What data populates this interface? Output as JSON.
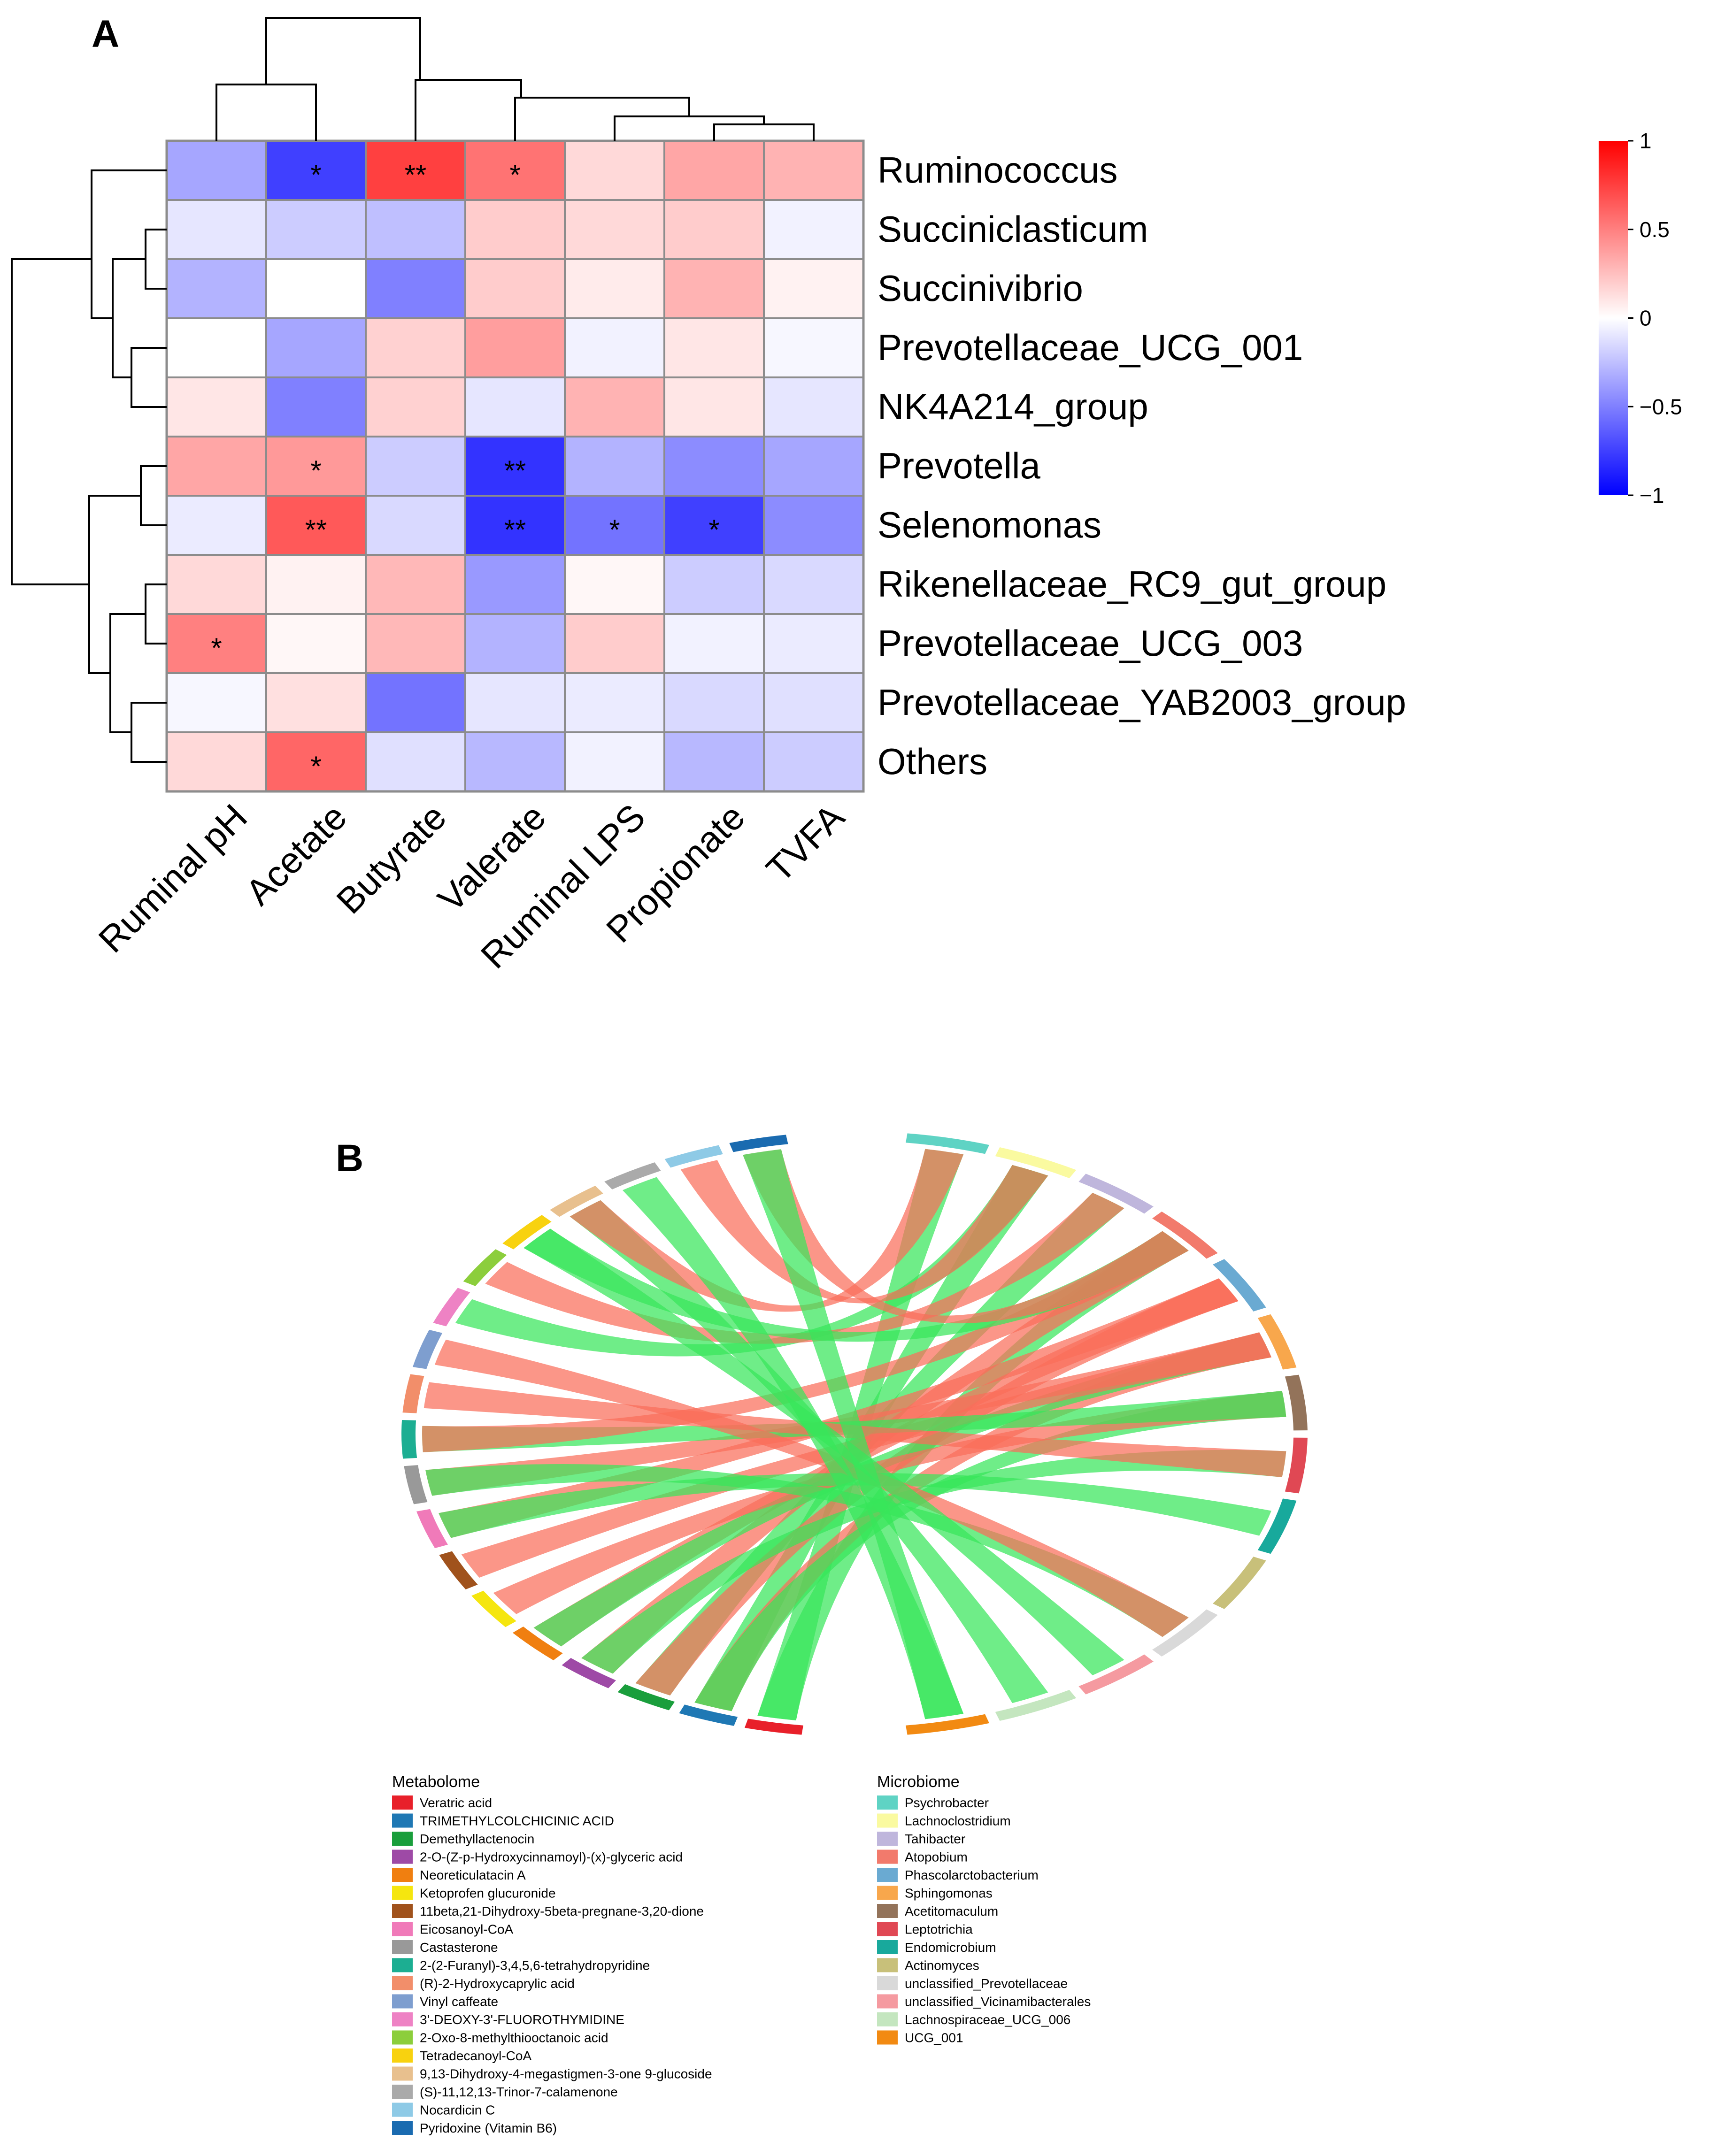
{
  "colors": {
    "neg": "#0000ff",
    "zero": "#ffffff",
    "pos": "#ff0000",
    "grid": "#8c8c8c",
    "dendro": "#000000",
    "chord_pos": "#fa6e5a",
    "chord_neg": "#37e65a"
  },
  "chart_data": [
    {
      "type": "heatmap",
      "panel": "A",
      "columns": [
        "Ruminal pH",
        "Acetate",
        "Butyrate",
        "Valerate",
        "Ruminal LPS",
        "Propionate",
        "TVFA"
      ],
      "rows": [
        "Ruminococcus",
        "Succiniclasticum",
        "Succinivibrio",
        "Prevotellaceae_UCG_001",
        "NK4A214_group",
        "Prevotella",
        "Selenomonas",
        "Rikenellaceae_RC9_gut_group",
        "Prevotellaceae_UCG_003",
        "Prevotellaceae_YAB2003_group",
        "Others"
      ],
      "values": [
        [
          -0.35,
          -0.75,
          0.75,
          0.55,
          0.15,
          0.35,
          0.3
        ],
        [
          -0.1,
          -0.2,
          -0.25,
          0.2,
          0.15,
          0.2,
          -0.05
        ],
        [
          -0.3,
          0.0,
          -0.5,
          0.2,
          0.08,
          0.3,
          0.05
        ],
        [
          0.0,
          -0.35,
          0.18,
          0.38,
          -0.05,
          0.1,
          -0.03
        ],
        [
          0.1,
          -0.5,
          0.18,
          -0.1,
          0.3,
          0.1,
          -0.1
        ],
        [
          0.35,
          0.4,
          -0.2,
          -0.8,
          -0.3,
          -0.45,
          -0.35
        ],
        [
          -0.08,
          0.65,
          -0.15,
          -0.8,
          -0.55,
          -0.75,
          -0.45
        ],
        [
          0.15,
          0.05,
          0.28,
          -0.4,
          0.03,
          -0.2,
          -0.15
        ],
        [
          0.5,
          0.03,
          0.28,
          -0.3,
          0.2,
          -0.05,
          -0.08
        ],
        [
          -0.03,
          0.12,
          -0.55,
          -0.1,
          -0.08,
          -0.15,
          -0.12
        ],
        [
          0.15,
          0.6,
          -0.12,
          -0.28,
          -0.05,
          -0.28,
          -0.2
        ]
      ],
      "significance": [
        [
          "",
          "*",
          "**",
          "*",
          "",
          "",
          ""
        ],
        [
          "",
          "",
          "",
          "",
          "",
          "",
          ""
        ],
        [
          "",
          "",
          "",
          "",
          "",
          "",
          ""
        ],
        [
          "",
          "",
          "",
          "",
          "",
          "",
          ""
        ],
        [
          "",
          "",
          "",
          "",
          "",
          "",
          ""
        ],
        [
          "",
          "*",
          "",
          "**",
          "",
          "",
          ""
        ],
        [
          "",
          "**",
          "",
          "**",
          "*",
          "*",
          ""
        ],
        [
          "",
          "",
          "",
          "",
          "",
          "",
          ""
        ],
        [
          "*",
          "",
          "",
          "",
          "",
          "",
          ""
        ],
        [
          "",
          "",
          "",
          "",
          "",
          "",
          ""
        ],
        [
          "",
          "*",
          "",
          "",
          "",
          "",
          ""
        ]
      ],
      "scale": {
        "min": -1,
        "max": 1,
        "ticks": [
          1,
          0.5,
          0,
          -0.5,
          -1
        ],
        "tick_labels": [
          "1",
          "0.5",
          "0",
          "−0.5",
          "−1"
        ]
      }
    },
    {
      "type": "chord",
      "panel": "B",
      "metabolome_title": "Metabolome",
      "microbiome_title": "Microbiome",
      "metabolome": [
        {
          "name": "Veratric acid",
          "color": "#e8202a"
        },
        {
          "name": "TRIMETHYLCOLCHICINIC ACID",
          "color": "#1f78b4"
        },
        {
          "name": "Demethyllactenocin",
          "color": "#1a9e3c"
        },
        {
          "name": "2-O-(Z-p-Hydroxycinnamoyl)-(x)-glyceric acid",
          "color": "#9e4aa6"
        },
        {
          "name": "Neoreticulatacin A",
          "color": "#f07f10"
        },
        {
          "name": "Ketoprofen glucuronide",
          "color": "#f5e60f"
        },
        {
          "name": "11beta,21-Dihydroxy-5beta-pregnane-3,20-dione",
          "color": "#a0521c"
        },
        {
          "name": "Eicosanoyl-CoA",
          "color": "#f07ab9"
        },
        {
          "name": "Castasterone",
          "color": "#999999"
        },
        {
          "name": "2-(2-Furanyl)-3,4,5,6-tetrahydropyridine",
          "color": "#1cae92"
        },
        {
          "name": "(R)-2-Hydroxycaprylic acid",
          "color": "#f28e6a"
        },
        {
          "name": "Vinyl caffeate",
          "color": "#7e9ecf"
        },
        {
          "name": "3'-DEOXY-3'-FLUOROTHYMIDINE",
          "color": "#ee82c4"
        },
        {
          "name": "2-Oxo-8-methylthiooctanoic acid",
          "color": "#8cce3c"
        },
        {
          "name": "Tetradecanoyl-CoA",
          "color": "#f8d20f"
        },
        {
          "name": "9,13-Dihydroxy-4-megastigmen-3-one 9-glucoside",
          "color": "#e8c08e"
        },
        {
          "name": "(S)-11,12,13-Trinor-7-calamenone",
          "color": "#aaaaaa"
        },
        {
          "name": "Nocardicin C",
          "color": "#8ecae6"
        },
        {
          "name": "Pyridoxine (Vitamin B6)",
          "color": "#1a6bb0"
        }
      ],
      "microbiome": [
        {
          "name": "Psychrobacter",
          "color": "#5fd3c4"
        },
        {
          "name": "Lachnoclostridium",
          "color": "#fafaa0"
        },
        {
          "name": "Tahibacter",
          "color": "#bfb6dc"
        },
        {
          "name": "Atopobium",
          "color": "#f27a6c"
        },
        {
          "name": "Phascolarctobacterium",
          "color": "#6aaad2"
        },
        {
          "name": "Sphingomonas",
          "color": "#f8a74c"
        },
        {
          "name": "Acetitomaculum",
          "color": "#93735a"
        },
        {
          "name": "Leptotrichia",
          "color": "#e04854"
        },
        {
          "name": "Endomicrobium",
          "color": "#18a99c"
        },
        {
          "name": "Actinomyces",
          "color": "#c8c07a"
        },
        {
          "name": "unclassified_Prevotellaceae",
          "color": "#d9d9d9"
        },
        {
          "name": "unclassified_Vicinamibacterales",
          "color": "#f59aa0"
        },
        {
          "name": "Lachnospiraceae_UCG_006",
          "color": "#c4e6bf"
        },
        {
          "name": "UCG_001",
          "color": "#f28a12"
        }
      ],
      "links": [
        {
          "metabolite": "Veratric acid",
          "microbe": "Atopobium",
          "sign": "neg"
        },
        {
          "metabolite": "Veratric acid",
          "microbe": "Psychrobacter",
          "sign": "neg"
        },
        {
          "metabolite": "TRIMETHYLCOLCHICINIC ACID",
          "microbe": "Lachnoclostridium",
          "sign": "neg"
        },
        {
          "metabolite": "TRIMETHYLCOLCHICINIC ACID",
          "microbe": "Sphingomonas",
          "sign": "pos"
        },
        {
          "metabolite": "TRIMETHYLCOLCHICINIC ACID",
          "microbe": "Acetitomaculum",
          "sign": "neg"
        },
        {
          "metabolite": "Demethyllactenocin",
          "microbe": "Tahibacter",
          "sign": "neg"
        },
        {
          "metabolite": "Demethyllactenocin",
          "microbe": "Phascolarctobacterium",
          "sign": "pos"
        },
        {
          "metabolite": "2-O-(Z-p-Hydroxycinnamoyl)-(x)-glyceric acid",
          "microbe": "Atopobium",
          "sign": "pos"
        },
        {
          "metabolite": "2-O-(Z-p-Hydroxycinnamoyl)-(x)-glyceric acid",
          "microbe": "Leptotrichia",
          "sign": "neg"
        },
        {
          "metabolite": "Neoreticulatacin A",
          "microbe": "Phascolarctobacterium",
          "sign": "pos"
        },
        {
          "metabolite": "Neoreticulatacin A",
          "microbe": "Sphingomonas",
          "sign": "neg"
        },
        {
          "metabolite": "Ketoprofen glucuronide",
          "microbe": "Acetitomaculum",
          "sign": "pos"
        },
        {
          "metabolite": "11beta,21-Dihydroxy-5beta-pregnane-3,20-dione",
          "microbe": "Sphingomonas",
          "sign": "pos"
        },
        {
          "metabolite": "Eicosanoyl-CoA",
          "microbe": "Phascolarctobacterium",
          "sign": "pos"
        },
        {
          "metabolite": "Eicosanoyl-CoA",
          "microbe": "Endomicrobium",
          "sign": "neg"
        },
        {
          "metabolite": "Castasterone",
          "microbe": "Sphingomonas",
          "sign": "pos"
        },
        {
          "metabolite": "Castasterone",
          "microbe": "unclassified_Prevotellaceae",
          "sign": "neg"
        },
        {
          "metabolite": "2-(2-Furanyl)-3,4,5,6-tetrahydropyridine",
          "microbe": "Acetitomaculum",
          "sign": "neg"
        },
        {
          "metabolite": "2-(2-Furanyl)-3,4,5,6-tetrahydropyridine",
          "microbe": "Atopobium",
          "sign": "pos"
        },
        {
          "metabolite": "(R)-2-Hydroxycaprylic acid",
          "microbe": "Leptotrichia",
          "sign": "pos"
        },
        {
          "metabolite": "Vinyl caffeate",
          "microbe": "unclassified_Prevotellaceae",
          "sign": "pos"
        },
        {
          "metabolite": "3'-DEOXY-3'-FLUOROTHYMIDINE",
          "microbe": "Lachnoclostridium",
          "sign": "neg"
        },
        {
          "metabolite": "2-Oxo-8-methylthiooctanoic acid",
          "microbe": "Tahibacter",
          "sign": "pos"
        },
        {
          "metabolite": "Tetradecanoyl-CoA",
          "microbe": "unclassified_Vicinamibacterales",
          "sign": "neg"
        },
        {
          "metabolite": "Tetradecanoyl-CoA",
          "microbe": "Atopobium",
          "sign": "neg"
        },
        {
          "metabolite": "9,13-Dihydroxy-4-megastigmen-3-one 9-glucoside",
          "microbe": "Lachnospiraceae_UCG_006",
          "sign": "neg"
        },
        {
          "metabolite": "9,13-Dihydroxy-4-megastigmen-3-one 9-glucoside",
          "microbe": "Psychrobacter",
          "sign": "pos"
        },
        {
          "metabolite": "(S)-11,12,13-Trinor-7-calamenone",
          "microbe": "UCG_001",
          "sign": "neg"
        },
        {
          "metabolite": "Nocardicin C",
          "microbe": "Lachnoclostridium",
          "sign": "pos"
        },
        {
          "metabolite": "Pyridoxine (Vitamin B6)",
          "microbe": "Atopobium",
          "sign": "pos"
        },
        {
          "metabolite": "Pyridoxine (Vitamin B6)",
          "microbe": "UCG_001",
          "sign": "neg"
        }
      ]
    }
  ],
  "panel_labels": {
    "a": "A",
    "b": "B"
  }
}
